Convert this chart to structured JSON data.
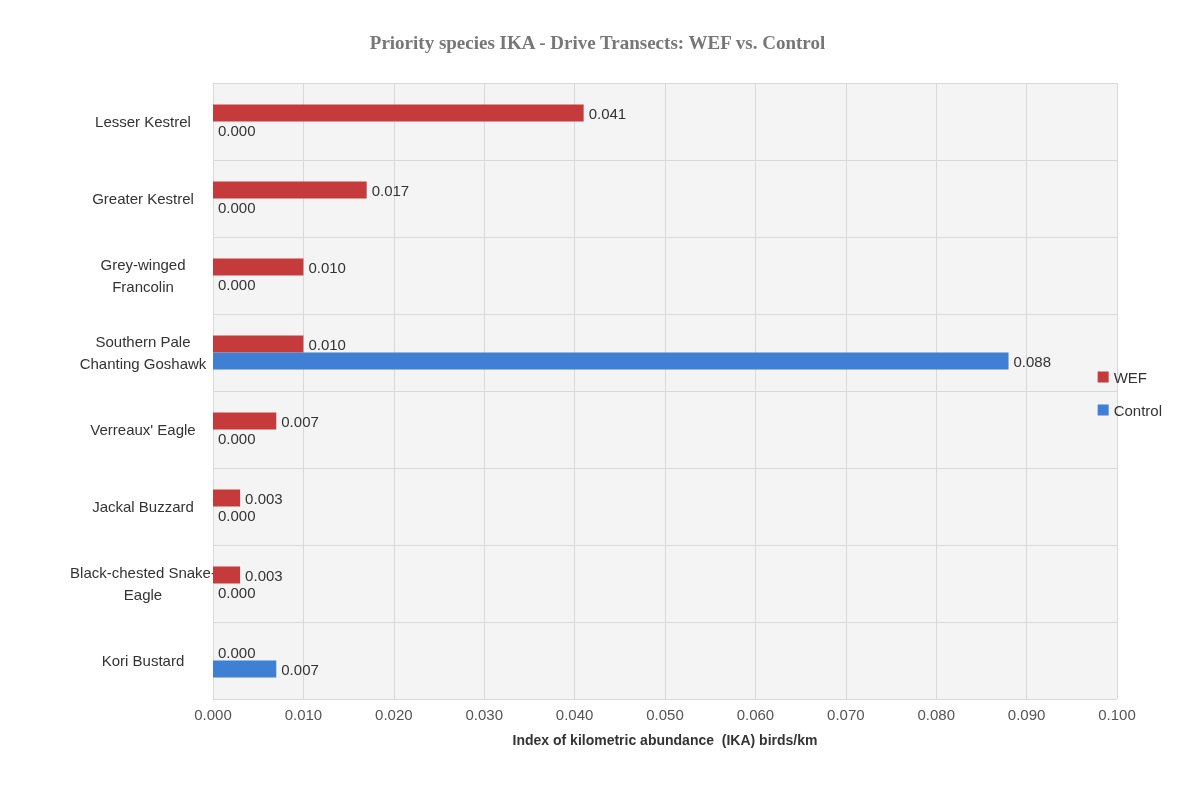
{
  "chart_data": {
    "type": "bar",
    "orientation": "horizontal",
    "title": "Priority species IKA - Drive Transects: WEF vs. Control",
    "xlabel": "Index of kilometric abundance  (IKA) birds/km",
    "categories": [
      "Lesser Kestrel",
      "Greater Kestrel",
      "Grey-winged\nFrancolin",
      "Southern Pale\nChanting Goshawk",
      "Verreaux' Eagle",
      "Jackal Buzzard",
      "Black-chested Snake-\nEagle",
      "Kori Bustard"
    ],
    "series": [
      {
        "name": "WEF",
        "color": "#c53b3b",
        "values": [
          0.041,
          0.017,
          0.01,
          0.01,
          0.007,
          0.003,
          0.003,
          0.0
        ],
        "value_labels": [
          "0.041",
          "0.017",
          "0.010",
          "0.010",
          "0.007",
          "0.003",
          "0.003",
          "0.000"
        ]
      },
      {
        "name": "Control",
        "color": "#3f7fd4",
        "values": [
          0.0,
          0.0,
          0.0,
          0.088,
          0.0,
          0.0,
          0.0,
          0.007
        ],
        "value_labels": [
          "0.000",
          "0.000",
          "0.000",
          "0.088",
          "0.000",
          "0.000",
          "0.000",
          "0.007"
        ]
      }
    ],
    "xlim": [
      0,
      0.1
    ],
    "xticks": [
      {
        "value": 0,
        "label": "0.000"
      },
      {
        "value": 0.01,
        "label": "0.010"
      },
      {
        "value": 0.02,
        "label": "0.020"
      },
      {
        "value": 0.03,
        "label": "0.030"
      },
      {
        "value": 0.04,
        "label": "0.040"
      },
      {
        "value": 0.05,
        "label": "0.050"
      },
      {
        "value": 0.06,
        "label": "0.060"
      },
      {
        "value": 0.07,
        "label": "0.070"
      },
      {
        "value": 0.08,
        "label": "0.080"
      },
      {
        "value": 0.09,
        "label": "0.090"
      },
      {
        "value": 0.1,
        "label": "0.100"
      }
    ],
    "grid": true,
    "legend": "right"
  }
}
